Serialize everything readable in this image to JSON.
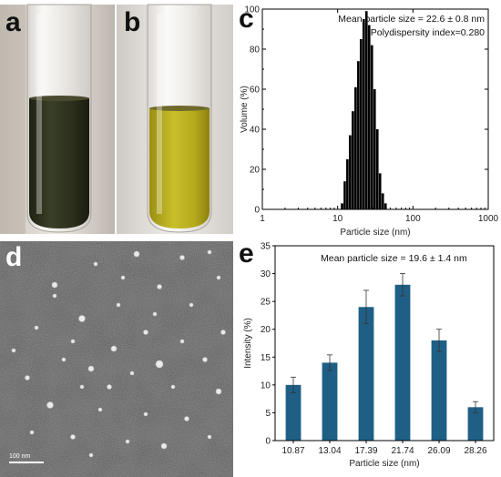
{
  "panels": {
    "a": "a",
    "b": "b",
    "c": "c",
    "d": "d",
    "e": "e"
  },
  "photo_a_color": "#2f3320",
  "photo_b_color": "#b7ae1a",
  "tem_scale_label": "100 nm",
  "chart_data": [
    {
      "type": "bar",
      "panel": "c",
      "xscale": "log",
      "xlim": [
        1,
        1000
      ],
      "ylim": [
        0,
        100
      ],
      "xticks": [
        "1",
        "10",
        "100",
        "1000"
      ],
      "yticks": [
        "0",
        "20",
        "40",
        "60",
        "80",
        "100"
      ],
      "xlabel": "Particle size (nm)",
      "ylabel": "Volume (%)",
      "annotations": [
        "Mean particle size = 22.6 ± 0.8 nm",
        "Polydispersity index=0.280"
      ],
      "bar_color": "#000000",
      "x": [
        11.5,
        12.5,
        13.5,
        14.7,
        16.0,
        17.4,
        18.9,
        20.5,
        22.3,
        24.2,
        26.3,
        28.6,
        31.1,
        33.8,
        36.7,
        39.9,
        43.4
      ],
      "values": [
        3,
        14,
        25,
        37,
        49,
        61,
        74,
        85,
        95,
        99,
        92,
        82,
        60,
        40,
        18,
        8,
        3
      ]
    },
    {
      "type": "bar",
      "panel": "e",
      "categories": [
        "10.87",
        "13.04",
        "17.39",
        "21.74",
        "26.09",
        "28.26"
      ],
      "values": [
        10,
        14,
        24,
        28,
        18,
        6
      ],
      "errors": [
        1.4,
        1.4,
        3.0,
        2.0,
        2.0,
        1.0
      ],
      "ylim": [
        0,
        35
      ],
      "yticks": [
        "0",
        "5",
        "10",
        "15",
        "20",
        "25",
        "30",
        "35"
      ],
      "xlabel": "Particle size (nm)",
      "ylabel": "Intensity (%)",
      "annotation": "Mean particle size = 19.6 ± 1.4 nm",
      "bar_color": "#1f5f86"
    }
  ]
}
